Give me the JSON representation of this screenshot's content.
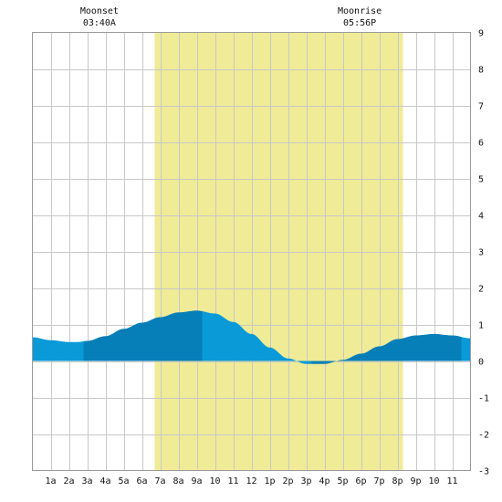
{
  "chart_data": {
    "type": "area",
    "title": "",
    "xlabel": "",
    "ylabel": "",
    "x_tick_labels": [
      "1a",
      "2a",
      "3a",
      "4a",
      "5a",
      "6a",
      "7a",
      "8a",
      "9a",
      "10",
      "11",
      "12",
      "1p",
      "2p",
      "3p",
      "4p",
      "5p",
      "6p",
      "7p",
      "8p",
      "9p",
      "10",
      "11"
    ],
    "y_ticks": [
      9,
      8,
      7,
      6,
      5,
      4,
      3,
      2,
      1,
      0,
      -1,
      -2,
      -3
    ],
    "xlim": [
      0,
      24
    ],
    "ylim": [
      -3,
      9
    ],
    "grid": true,
    "daylight": {
      "start": 6.7,
      "end": 20.3
    },
    "moonset": {
      "label": "Moonset",
      "time": "03:40A",
      "x": 3.67
    },
    "moonrise": {
      "label": "Moonrise",
      "time": "05:56P",
      "x": 17.93
    },
    "series": [
      {
        "values": [
          [
            0,
            0.65
          ],
          [
            1,
            0.57
          ],
          [
            2,
            0.52
          ],
          [
            2.5,
            0.52
          ],
          [
            3,
            0.55
          ],
          [
            4,
            0.68
          ],
          [
            5,
            0.88
          ],
          [
            6,
            1.05
          ],
          [
            7,
            1.2
          ],
          [
            8,
            1.33
          ],
          [
            9,
            1.38
          ],
          [
            10,
            1.3
          ],
          [
            11,
            1.07
          ],
          [
            12,
            0.74
          ],
          [
            13,
            0.37
          ],
          [
            14,
            0.07
          ],
          [
            15,
            -0.08
          ],
          [
            16,
            -0.08
          ],
          [
            17,
            0.03
          ],
          [
            18,
            0.2
          ],
          [
            19,
            0.4
          ],
          [
            20,
            0.6
          ],
          [
            21,
            0.7
          ],
          [
            22,
            0.74
          ],
          [
            23,
            0.7
          ],
          [
            24,
            0.62
          ]
        ]
      }
    ],
    "band_boundaries": [
      0,
      2.8,
      9.3,
      15.3,
      23.5,
      24
    ],
    "colors": {
      "background": "#ffffff",
      "daylight": "#f0eb96",
      "grid": "#c8c8c8",
      "border": "#9a9a9a",
      "water_light": "#0a9ad8",
      "water_dark": "#067eb8"
    }
  }
}
